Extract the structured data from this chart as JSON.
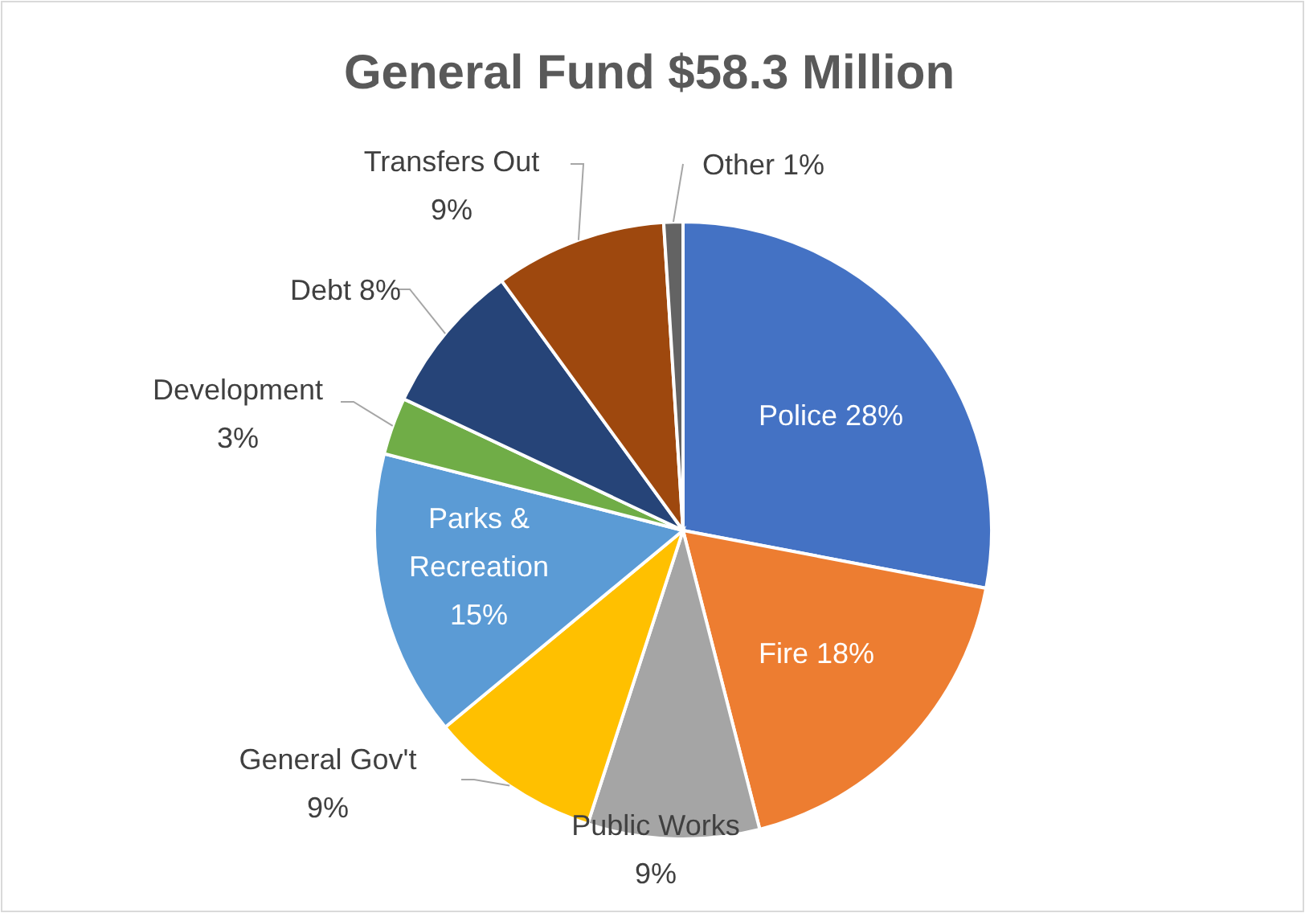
{
  "chart_data": {
    "type": "pie",
    "title": "General Fund $58.3 Million",
    "categories": [
      "Police",
      "Fire",
      "Public Works",
      "General Gov't",
      "Parks & Recreation",
      "Development",
      "Debt",
      "Transfers Out",
      "Other"
    ],
    "values": [
      28,
      18,
      9,
      9,
      15,
      3,
      8,
      9,
      1
    ],
    "value_labels": [
      "28%",
      "18%",
      "9%",
      "9%",
      "15%",
      "3%",
      "8%",
      "9%",
      "1%"
    ],
    "colors": [
      "#4472c4",
      "#ed7d31",
      "#a5a5a5",
      "#ffc000",
      "#5b9bd5",
      "#70ad47",
      "#264478",
      "#9e480e",
      "#636363"
    ]
  }
}
